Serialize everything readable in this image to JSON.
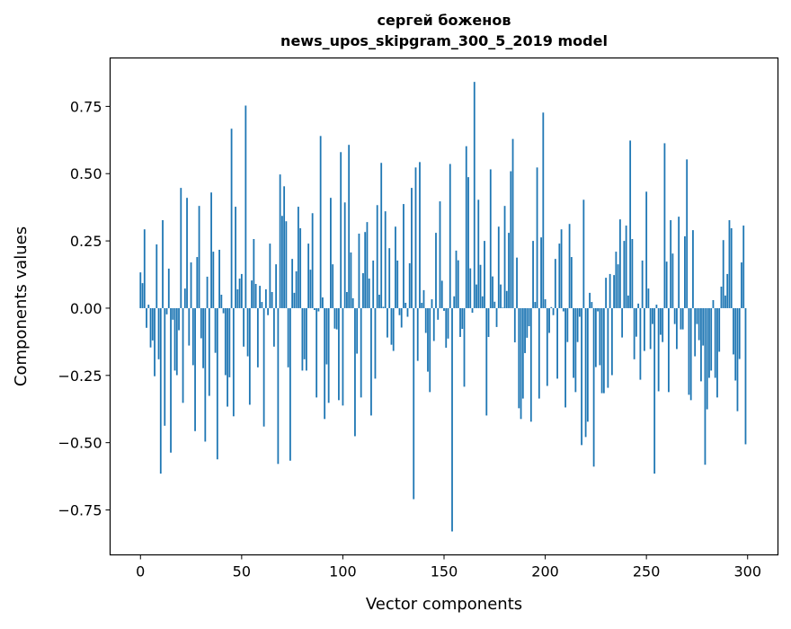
{
  "chart_data": {
    "type": "bar",
    "title": "сергей боженов",
    "subtitle": "news_upos_skipgram_300_5_2019 model",
    "xlabel": "Vector components",
    "ylabel": "Components values",
    "x_start": 0,
    "xlim": [
      -15,
      315
    ],
    "ylim": [
      -0.917,
      0.93
    ],
    "xticks": [
      0,
      50,
      100,
      150,
      200,
      250,
      300
    ],
    "xtick_labels": [
      "0",
      "50",
      "100",
      "150",
      "200",
      "250",
      "300"
    ],
    "yticks": [
      -0.75,
      -0.5,
      -0.25,
      0,
      0.25,
      0.5,
      0.75
    ],
    "ytick_labels": [
      "−0.75",
      "−0.50",
      "−0.25",
      "0.00",
      "0.25",
      "0.50",
      "0.75"
    ],
    "grid": false,
    "bar_color": "#1f77b4",
    "values": [
      0.133,
      0.093,
      0.293,
      -0.073,
      0.013,
      -0.146,
      -0.12,
      -0.253,
      0.237,
      -0.19,
      -0.615,
      0.327,
      -0.437,
      -0.023,
      0.147,
      -0.537,
      -0.043,
      -0.232,
      -0.249,
      -0.082,
      0.447,
      -0.352,
      0.073,
      0.41,
      -0.139,
      0.17,
      -0.212,
      -0.457,
      0.19,
      0.38,
      -0.112,
      -0.223,
      -0.496,
      0.117,
      -0.326,
      0.43,
      0.21,
      -0.166,
      -0.562,
      0.217,
      0.05,
      -0.019,
      -0.249,
      -0.366,
      -0.257,
      0.667,
      -0.402,
      0.377,
      0.07,
      0.11,
      0.127,
      -0.143,
      0.753,
      -0.179,
      -0.359,
      0.103,
      0.257,
      0.09,
      -0.22,
      0.083,
      0.023,
      -0.44,
      0.07,
      -0.026,
      0.24,
      0.06,
      -0.143,
      0.163,
      -0.579,
      0.497,
      0.343,
      0.453,
      0.323,
      -0.22,
      -0.567,
      0.183,
      0.057,
      0.137,
      0.377,
      0.297,
      -0.232,
      -0.19,
      -0.232,
      0.24,
      0.143,
      0.353,
      -0.007,
      -0.332,
      -0.012,
      0.64,
      0.04,
      -0.412,
      -0.209,
      -0.352,
      0.41,
      0.163,
      -0.076,
      -0.079,
      -0.342,
      0.58,
      -0.362,
      0.393,
      0.06,
      0.607,
      0.207,
      0.037,
      -0.476,
      -0.169,
      0.277,
      -0.332,
      0.13,
      0.283,
      0.32,
      0.11,
      -0.399,
      0.177,
      -0.262,
      0.383,
      0.05,
      0.54,
      0.005,
      0.36,
      -0.109,
      0.223,
      -0.136,
      -0.159,
      0.303,
      0.177,
      -0.026,
      -0.072,
      0.387,
      0.02,
      -0.032,
      0.167,
      0.447,
      -0.71,
      0.523,
      -0.196,
      0.543,
      0.02,
      0.067,
      -0.092,
      -0.236,
      -0.312,
      0.033,
      -0.122,
      0.28,
      -0.043,
      0.397,
      0.102,
      -0.01,
      -0.147,
      -0.113,
      0.536,
      -0.83,
      0.044,
      0.214,
      0.178,
      -0.107,
      -0.077,
      -0.292,
      0.602,
      0.487,
      0.148,
      -0.017,
      0.841,
      0.088,
      0.403,
      0.161,
      0.044,
      0.25,
      -0.399,
      -0.107,
      0.516,
      0.118,
      0.024,
      -0.07,
      0.303,
      0.088,
      0.002,
      0.38,
      0.064,
      0.28,
      0.509,
      0.629,
      -0.127,
      0.188,
      -0.372,
      -0.412,
      -0.336,
      -0.167,
      -0.11,
      -0.067,
      -0.422,
      0.25,
      0.023,
      0.523,
      -0.336,
      0.263,
      0.727,
      0.033,
      -0.289,
      -0.092,
      0.004,
      -0.026,
      0.183,
      -0.262,
      0.24,
      0.293,
      -0.012,
      -0.369,
      -0.126,
      0.313,
      0.19,
      -0.259,
      -0.312,
      -0.126,
      -0.032,
      -0.509,
      0.403,
      -0.479,
      -0.422,
      0.057,
      0.023,
      -0.589,
      -0.219,
      -0.012,
      -0.212,
      -0.316,
      -0.316,
      0.113,
      -0.296,
      0.127,
      -0.249,
      0.123,
      0.21,
      0.163,
      0.33,
      -0.109,
      0.25,
      0.307,
      0.047,
      0.623,
      0.257,
      -0.19,
      -0.106,
      0.017,
      -0.266,
      0.177,
      -0.159,
      0.433,
      0.073,
      -0.152,
      -0.059,
      -0.615,
      0.013,
      -0.309,
      -0.099,
      -0.126,
      0.613,
      0.173,
      -0.312,
      0.327,
      0.203,
      -0.059,
      -0.152,
      0.34,
      -0.079,
      -0.079,
      0.267,
      0.553,
      -0.322,
      -0.342,
      0.29,
      -0.179,
      -0.059,
      -0.119,
      -0.272,
      -0.139,
      -0.582,
      -0.376,
      -0.259,
      -0.232,
      0.03,
      -0.259,
      -0.332,
      -0.162,
      0.08,
      0.253,
      0.047,
      0.127,
      0.327,
      0.297,
      -0.172,
      -0.269,
      -0.383,
      -0.189,
      0.17,
      0.307,
      -0.506
    ]
  }
}
